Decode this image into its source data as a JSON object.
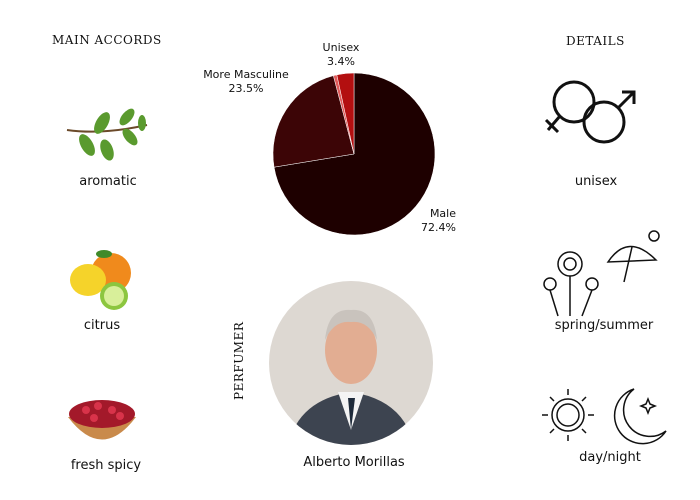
{
  "main_accords": {
    "heading": "MAIN ACCORDS",
    "items": [
      {
        "label": "aromatic",
        "icon": "herb-sprig-icon"
      },
      {
        "label": "citrus",
        "icon": "citrus-fruits-icon"
      },
      {
        "label": "fresh spicy",
        "icon": "peppercorn-bowl-icon"
      }
    ]
  },
  "details": {
    "heading": "DETAILS",
    "items": [
      {
        "label": "unisex",
        "icon": "gender-symbols-icon"
      },
      {
        "label": "spring/summer",
        "icon": "flowers-umbrella-sun-icon"
      },
      {
        "label": "day/night",
        "icon": "sun-moon-icon"
      }
    ]
  },
  "perfumer": {
    "heading": "PERFUMER",
    "name": "Alberto Morillas"
  },
  "chart_data": {
    "type": "pie",
    "slices": [
      {
        "label": "Male",
        "value": 72.4,
        "display": "72.4%",
        "color": "#1e0000"
      },
      {
        "label": "More Masculine",
        "value": 23.5,
        "display": "23.5%",
        "color": "#3c0506"
      },
      {
        "label": "",
        "value": 0.7,
        "display": "",
        "color": "#e05a5a"
      },
      {
        "label": "Unisex",
        "value": 3.4,
        "display": "3.4%",
        "color": "#b30f10"
      }
    ]
  }
}
